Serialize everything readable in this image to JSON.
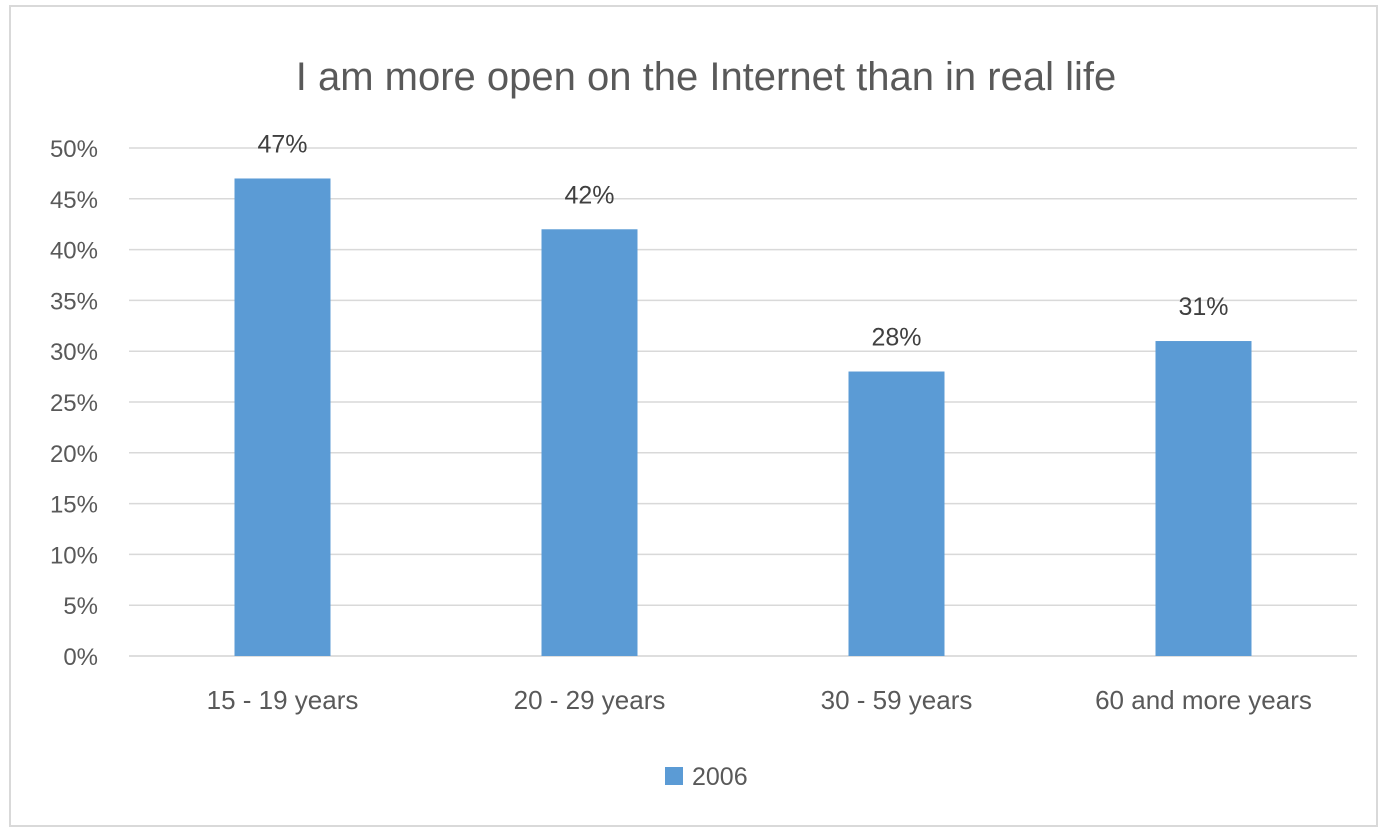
{
  "chart_data": {
    "type": "bar",
    "title": "I am more open on the Internet than in real life",
    "categories": [
      "15 - 19 years",
      "20 - 29 years",
      "30 - 59 years",
      "60 and more years"
    ],
    "series": [
      {
        "name": "2006",
        "values": [
          47,
          42,
          28,
          31
        ],
        "data_labels": [
          "47%",
          "42%",
          "28%",
          "31%"
        ]
      }
    ],
    "ylim": [
      0,
      50
    ],
    "y_ticks": [
      0,
      5,
      10,
      15,
      20,
      25,
      30,
      35,
      40,
      45,
      50
    ],
    "y_tick_labels": [
      "0%",
      "5%",
      "10%",
      "15%",
      "20%",
      "25%",
      "30%",
      "35%",
      "40%",
      "45%",
      "50%"
    ],
    "grid": true,
    "legend_position": "bottom",
    "colors": {
      "bar": "#5b9bd5",
      "grid": "#d9d9d9",
      "text": "#595959"
    }
  }
}
